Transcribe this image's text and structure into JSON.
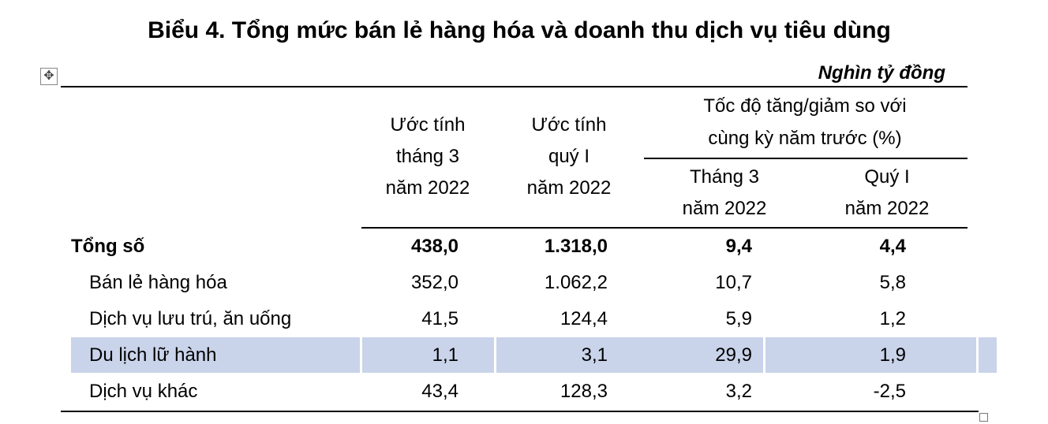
{
  "title": "Biểu 4. Tổng mức bán lẻ hàng hóa và doanh thu dịch vụ tiêu dùng",
  "unit": "Nghìn tỷ đồng",
  "table": {
    "header": {
      "col1": [
        "Ước tính",
        "tháng 3",
        "năm 2022"
      ],
      "col2": [
        "Ước tính",
        "quý I",
        "năm 2022"
      ],
      "group": [
        "Tốc độ tăng/giảm so với",
        "cùng kỳ năm trước (%)"
      ],
      "col3": [
        "Tháng 3",
        "năm 2022"
      ],
      "col4": [
        "Quý I",
        "năm 2022"
      ]
    },
    "rows": [
      [
        "Tổng số",
        "438,0",
        "1.318,0",
        "9,4",
        "4,4"
      ],
      [
        "Bán lẻ hàng hóa",
        "352,0",
        "1.062,2",
        "10,7",
        "5,8"
      ],
      [
        "Dịch vụ lưu trú, ăn uống",
        "41,5",
        "124,4",
        "5,9",
        "1,2"
      ],
      [
        "Du lịch lữ hành",
        "1,1",
        "3,1",
        "29,9",
        "1,9"
      ],
      [
        "Dịch vụ khác",
        "43,4",
        "128,3",
        "3,2",
        "-2,5"
      ]
    ]
  }
}
